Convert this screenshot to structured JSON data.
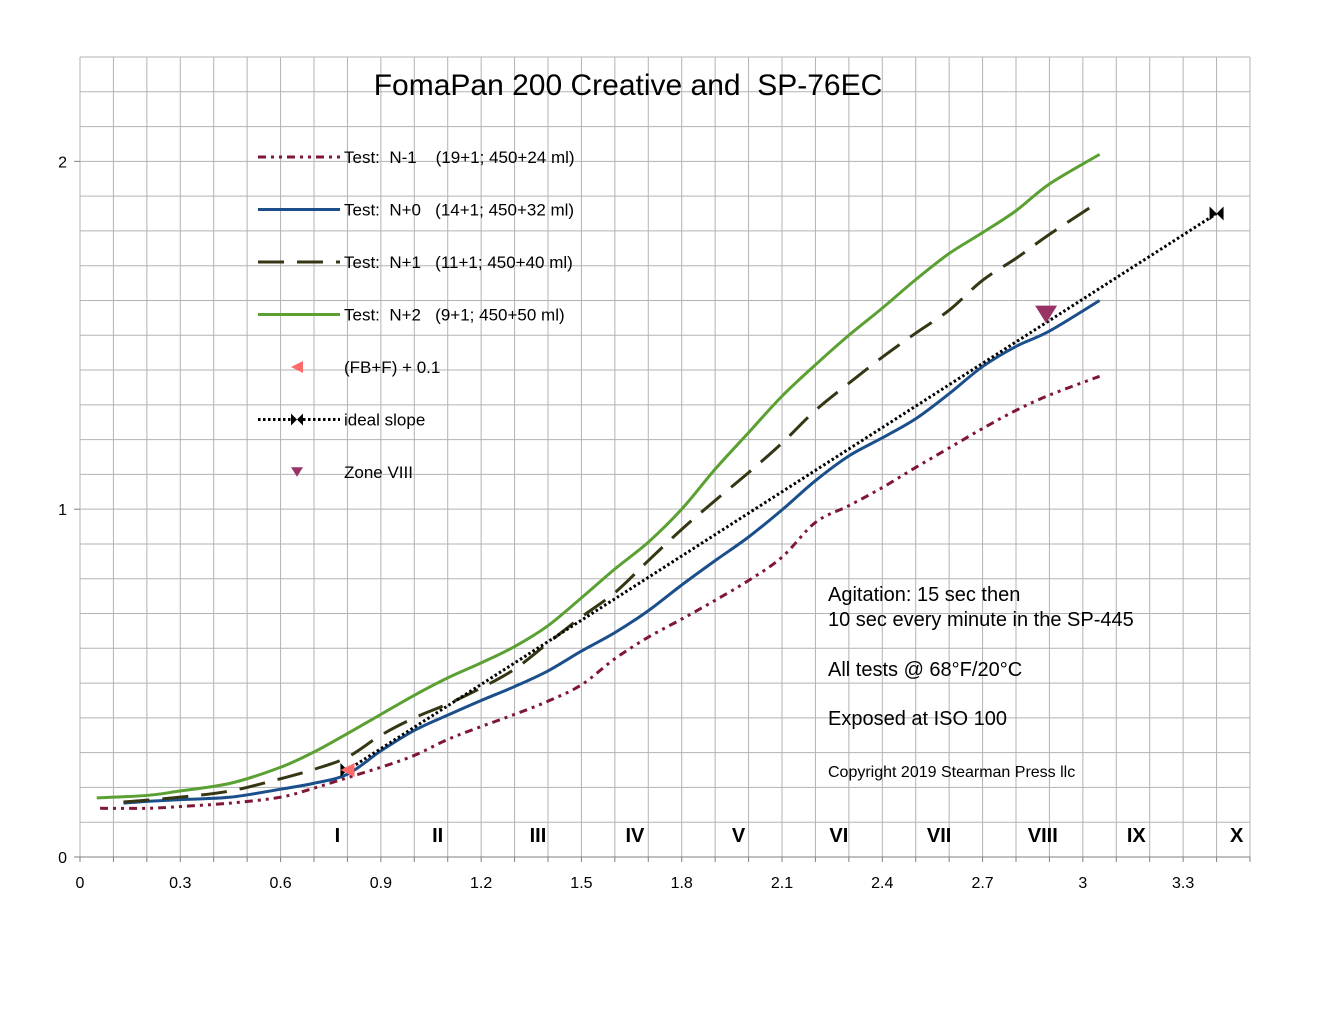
{
  "chart_data": {
    "type": "line",
    "title": "FomaPan 200 Creative and  SP-76EC",
    "xlim": [
      0,
      3.5
    ],
    "ylim": [
      0,
      2.3
    ],
    "x_ticks": [
      "0",
      "0.3",
      "0.6",
      "0.9",
      "1.2",
      "1.5",
      "1.8",
      "2.1",
      "2.4",
      "2.7",
      "3",
      "3.3"
    ],
    "y_ticks": [
      "0",
      "1",
      "2"
    ],
    "grid": true,
    "grid_step": 0.1,
    "legend_position": "top-left",
    "series": [
      {
        "name": "Test:  N-1    (19+1; 450+24 ml)",
        "color": "#7f1734",
        "line": "dash-dot-dot",
        "marker": "none",
        "points": [
          [
            0.06,
            0.14
          ],
          [
            0.2,
            0.14
          ],
          [
            0.3,
            0.145
          ],
          [
            0.45,
            0.155
          ],
          [
            0.6,
            0.172
          ],
          [
            0.7,
            0.198
          ],
          [
            0.8,
            0.228
          ],
          [
            0.9,
            0.258
          ],
          [
            1.0,
            0.292
          ],
          [
            1.1,
            0.338
          ],
          [
            1.2,
            0.375
          ],
          [
            1.3,
            0.41
          ],
          [
            1.4,
            0.448
          ],
          [
            1.5,
            0.495
          ],
          [
            1.6,
            0.57
          ],
          [
            1.7,
            0.632
          ],
          [
            1.8,
            0.684
          ],
          [
            1.9,
            0.738
          ],
          [
            2.0,
            0.795
          ],
          [
            2.1,
            0.862
          ],
          [
            2.2,
            0.962
          ],
          [
            2.3,
            1.01
          ],
          [
            2.4,
            1.062
          ],
          [
            2.5,
            1.12
          ],
          [
            2.6,
            1.176
          ],
          [
            2.7,
            1.232
          ],
          [
            2.8,
            1.284
          ],
          [
            2.9,
            1.328
          ],
          [
            3.05,
            1.382
          ]
        ]
      },
      {
        "name": "Test:  N+0   (14+1; 450+32 ml)",
        "color": "#1b4f8c",
        "line": "solid",
        "marker": "none",
        "points": [
          [
            0.13,
            0.155
          ],
          [
            0.2,
            0.16
          ],
          [
            0.3,
            0.165
          ],
          [
            0.45,
            0.172
          ],
          [
            0.6,
            0.195
          ],
          [
            0.7,
            0.212
          ],
          [
            0.8,
            0.238
          ],
          [
            0.9,
            0.305
          ],
          [
            1.0,
            0.364
          ],
          [
            1.1,
            0.408
          ],
          [
            1.2,
            0.45
          ],
          [
            1.3,
            0.49
          ],
          [
            1.4,
            0.535
          ],
          [
            1.5,
            0.592
          ],
          [
            1.6,
            0.645
          ],
          [
            1.7,
            0.708
          ],
          [
            1.8,
            0.782
          ],
          [
            1.9,
            0.852
          ],
          [
            2.0,
            0.92
          ],
          [
            2.1,
            0.998
          ],
          [
            2.2,
            1.082
          ],
          [
            2.3,
            1.153
          ],
          [
            2.4,
            1.205
          ],
          [
            2.5,
            1.26
          ],
          [
            2.6,
            1.332
          ],
          [
            2.7,
            1.41
          ],
          [
            2.8,
            1.468
          ],
          [
            2.9,
            1.512
          ],
          [
            3.05,
            1.6
          ]
        ]
      },
      {
        "name": "Test:  N+1   (11+1; 450+40 ml)",
        "color": "#363614",
        "line": "long-dash",
        "marker": "none",
        "points": [
          [
            0.13,
            0.158
          ],
          [
            0.3,
            0.172
          ],
          [
            0.45,
            0.19
          ],
          [
            0.6,
            0.225
          ],
          [
            0.7,
            0.252
          ],
          [
            0.8,
            0.287
          ],
          [
            0.9,
            0.35
          ],
          [
            1.0,
            0.4
          ],
          [
            1.1,
            0.44
          ],
          [
            1.2,
            0.486
          ],
          [
            1.3,
            0.54
          ],
          [
            1.4,
            0.615
          ],
          [
            1.5,
            0.69
          ],
          [
            1.6,
            0.76
          ],
          [
            1.7,
            0.852
          ],
          [
            1.8,
            0.942
          ],
          [
            1.9,
            1.025
          ],
          [
            2.0,
            1.105
          ],
          [
            2.1,
            1.19
          ],
          [
            2.2,
            1.284
          ],
          [
            2.3,
            1.362
          ],
          [
            2.4,
            1.437
          ],
          [
            2.5,
            1.506
          ],
          [
            2.6,
            1.572
          ],
          [
            2.7,
            1.658
          ],
          [
            2.8,
            1.721
          ],
          [
            2.9,
            1.79
          ],
          [
            3.05,
            1.885
          ]
        ]
      },
      {
        "name": "Test:  N+2   (9+1; 450+50 ml)",
        "color": "#5ba032",
        "line": "solid",
        "marker": "none",
        "points": [
          [
            0.05,
            0.17
          ],
          [
            0.2,
            0.177
          ],
          [
            0.3,
            0.19
          ],
          [
            0.45,
            0.212
          ],
          [
            0.6,
            0.258
          ],
          [
            0.7,
            0.302
          ],
          [
            0.8,
            0.355
          ],
          [
            0.9,
            0.41
          ],
          [
            1.0,
            0.465
          ],
          [
            1.1,
            0.515
          ],
          [
            1.2,
            0.558
          ],
          [
            1.3,
            0.605
          ],
          [
            1.4,
            0.665
          ],
          [
            1.5,
            0.745
          ],
          [
            1.6,
            0.828
          ],
          [
            1.7,
            0.905
          ],
          [
            1.8,
            1.0
          ],
          [
            1.9,
            1.115
          ],
          [
            2.0,
            1.22
          ],
          [
            2.1,
            1.325
          ],
          [
            2.2,
            1.415
          ],
          [
            2.3,
            1.5
          ],
          [
            2.4,
            1.578
          ],
          [
            2.5,
            1.66
          ],
          [
            2.6,
            1.735
          ],
          [
            2.7,
            1.795
          ],
          [
            2.8,
            1.858
          ],
          [
            2.9,
            1.935
          ],
          [
            3.05,
            2.02
          ]
        ]
      },
      {
        "name": "(FB+F) + 0.1",
        "color": "#ff6b6b",
        "line": "none",
        "marker": "triangle-left",
        "points": [
          [
            0.8,
            0.25
          ]
        ]
      },
      {
        "name": "ideal slope",
        "color": "#000000",
        "line": "dotted",
        "marker": "bowtie",
        "points": [
          [
            0.8,
            0.25
          ],
          [
            3.4,
            1.85
          ]
        ]
      },
      {
        "name": "Zone VIII",
        "color": "#993366",
        "line": "none",
        "marker": "triangle-down",
        "points": [
          [
            2.89,
            1.56
          ]
        ]
      }
    ],
    "zones": [
      {
        "label": "I",
        "x": 0.77
      },
      {
        "label": "II",
        "x": 1.07
      },
      {
        "label": "III",
        "x": 1.37
      },
      {
        "label": "IV",
        "x": 1.66
      },
      {
        "label": "V",
        "x": 1.97
      },
      {
        "label": "VI",
        "x": 2.27
      },
      {
        "label": "VII",
        "x": 2.57
      },
      {
        "label": "VIII",
        "x": 2.88
      },
      {
        "label": "IX",
        "x": 3.16
      },
      {
        "label": "X",
        "x": 3.46
      }
    ],
    "annotations": [
      "Agitation: 15 sec then",
      "10 sec every minute in the SP-445",
      "All tests @ 68°F/20°C",
      "Exposed at ISO 100"
    ],
    "copyright": "Copyright 2019 Stearman Press llc"
  }
}
